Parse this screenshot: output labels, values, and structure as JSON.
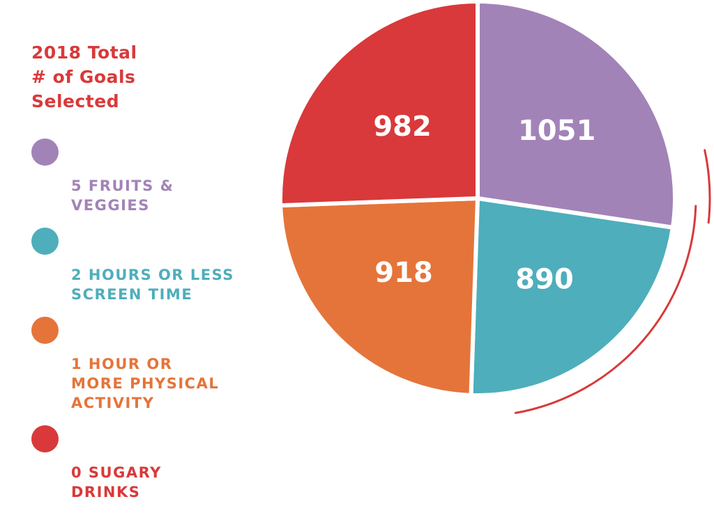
{
  "chart_data": {
    "type": "pie",
    "title": "2018 Total\n# of Goals\nSelected",
    "legend_position": "left",
    "slices": [
      {
        "label": "5 FRUITS &\nVEGGIES",
        "value": 1051,
        "color": "#a283b8"
      },
      {
        "label": "2 HOURS OR LESS\nSCREEN TIME",
        "value": 890,
        "color": "#4eaebb"
      },
      {
        "label": "1 HOUR OR\nMORE PHYSICAL\nACTIVITY",
        "value": 918,
        "color": "#e5743a"
      },
      {
        "label": "0 SUGARY\nDRINKS",
        "value": 982,
        "color": "#d9393a"
      }
    ],
    "accent_arc_color": "#d9393a"
  }
}
